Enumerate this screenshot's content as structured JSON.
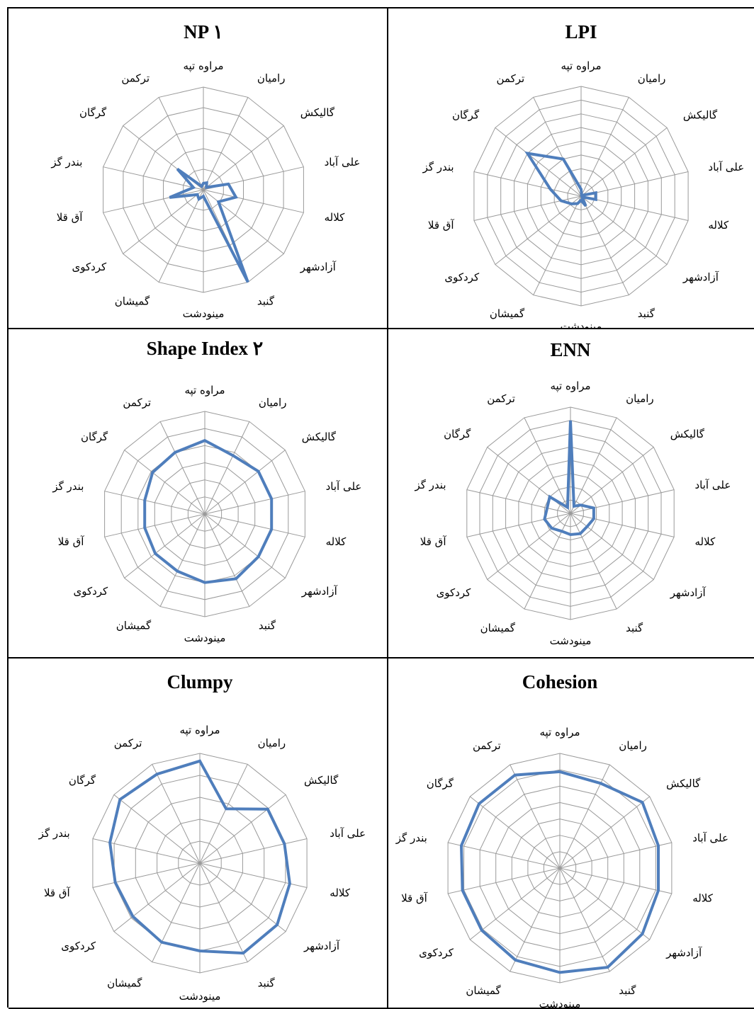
{
  "series_color": "#4F7EBC",
  "categories": [
    "مراوه تپه",
    "رامیان",
    "گالیکش",
    "علی آباد",
    "کلاله",
    "آزادشهر",
    "گنبد",
    "مینودشت",
    "گمیشان",
    "کردکوی",
    "آق قلا",
    "بندر گز",
    "گرگان",
    "ترکمن"
  ],
  "chart_data": [
    {
      "type": "radar",
      "title": "NP",
      "title_suffix": "۱",
      "categories": [
        "مراوه تپه",
        "رامیان",
        "گالیکش",
        "علی آباد",
        "کلاله",
        "آزادشهر",
        "گنبد",
        "مینودشت",
        "گمیشان",
        "کردکوی",
        "آق قلا",
        "بندر گز",
        "گرگان",
        "ترکمن"
      ],
      "rmax": 8,
      "rings": 5,
      "values": [
        0.5,
        0.6,
        0.3,
        2.0,
        2.6,
        1.5,
        8.0,
        0.5,
        0.8,
        0.6,
        2.7,
        0.8,
        2.6,
        0.3
      ]
    },
    {
      "type": "radar",
      "title": "LPI",
      "title_suffix": "",
      "categories": [
        "مراوه تپه",
        "رامیان",
        "گالیکش",
        "علی آباد",
        "کلاله",
        "آزادشهر",
        "گنبد",
        "مینودشت",
        "گمیشان",
        "کردکوی",
        "آق قلا",
        "بندر گز",
        "گرگان",
        "ترکمن"
      ],
      "rmax": 8,
      "rings": 8,
      "values": [
        0.5,
        0.1,
        0.1,
        1.1,
        1.1,
        0.1,
        0.8,
        0.3,
        0.6,
        0.9,
        1.5,
        2.3,
        5.0,
        3.0
      ]
    },
    {
      "type": "radar",
      "title": "Shape Index",
      "title_suffix": "۲",
      "categories": [
        "مراوه تپه",
        "رامیان",
        "گالیکش",
        "علی آباد",
        "کلاله",
        "آزادشهر",
        "گنبد",
        "مینودشت",
        "گمیشان",
        "کردکوی",
        "آق قلا",
        "بندر گز",
        "گرگان",
        "ترکمن"
      ],
      "rmax": 6,
      "rings": 6,
      "values": [
        4.3,
        3.8,
        4.0,
        4.0,
        4.0,
        4.0,
        4.2,
        4.0,
        3.7,
        3.7,
        3.6,
        3.6,
        3.9,
        4.0
      ]
    },
    {
      "type": "radar",
      "title": "ENN",
      "title_suffix": "",
      "categories": [
        "مراوه تپه",
        "رامیان",
        "گالیکش",
        "علی آباد",
        "کلاله",
        "آزادشهر",
        "گنبد",
        "مینودشت",
        "گمیشان",
        "کردکوی",
        "آق قلا",
        "بندر گز",
        "گرگان",
        "ترکمن"
      ],
      "rmax": 8,
      "rings": 8,
      "values": [
        7.0,
        0.6,
        1.0,
        1.8,
        1.8,
        1.6,
        1.7,
        1.6,
        1.5,
        1.8,
        2.0,
        1.8,
        2.0,
        0.5
      ]
    },
    {
      "type": "radar",
      "title": "Clumpy",
      "title_suffix": "",
      "categories": [
        "مراوه تپه",
        "رامیان",
        "گالیکش",
        "علی آباد",
        "کلاله",
        "آزادشهر",
        "گنبد",
        "مینودشت",
        "گمیشان",
        "کردکوی",
        "آق قلا",
        "بندر گز",
        "گرگان",
        "ترکمن"
      ],
      "rmax": 1,
      "rings": 5,
      "values": [
        0.93,
        0.55,
        0.79,
        0.79,
        0.84,
        0.9,
        0.91,
        0.8,
        0.8,
        0.78,
        0.79,
        0.84,
        0.93,
        0.9
      ]
    },
    {
      "type": "radar",
      "title": "Cohesion",
      "title_suffix": "",
      "categories": [
        "مراوه تپه",
        "رامیان",
        "گالیکش",
        "علی آباد",
        "کلاله",
        "آزادشهر",
        "گنبد",
        "مینودشت",
        "گمیشان",
        "کردکوی",
        "آق قلا",
        "بندر گز",
        "گرگان",
        "ترکمن"
      ],
      "rmax": 100,
      "rings": 7,
      "values": [
        84,
        82,
        92,
        88,
        88,
        92,
        96,
        91,
        89,
        87,
        87,
        88,
        90,
        90
      ]
    }
  ]
}
